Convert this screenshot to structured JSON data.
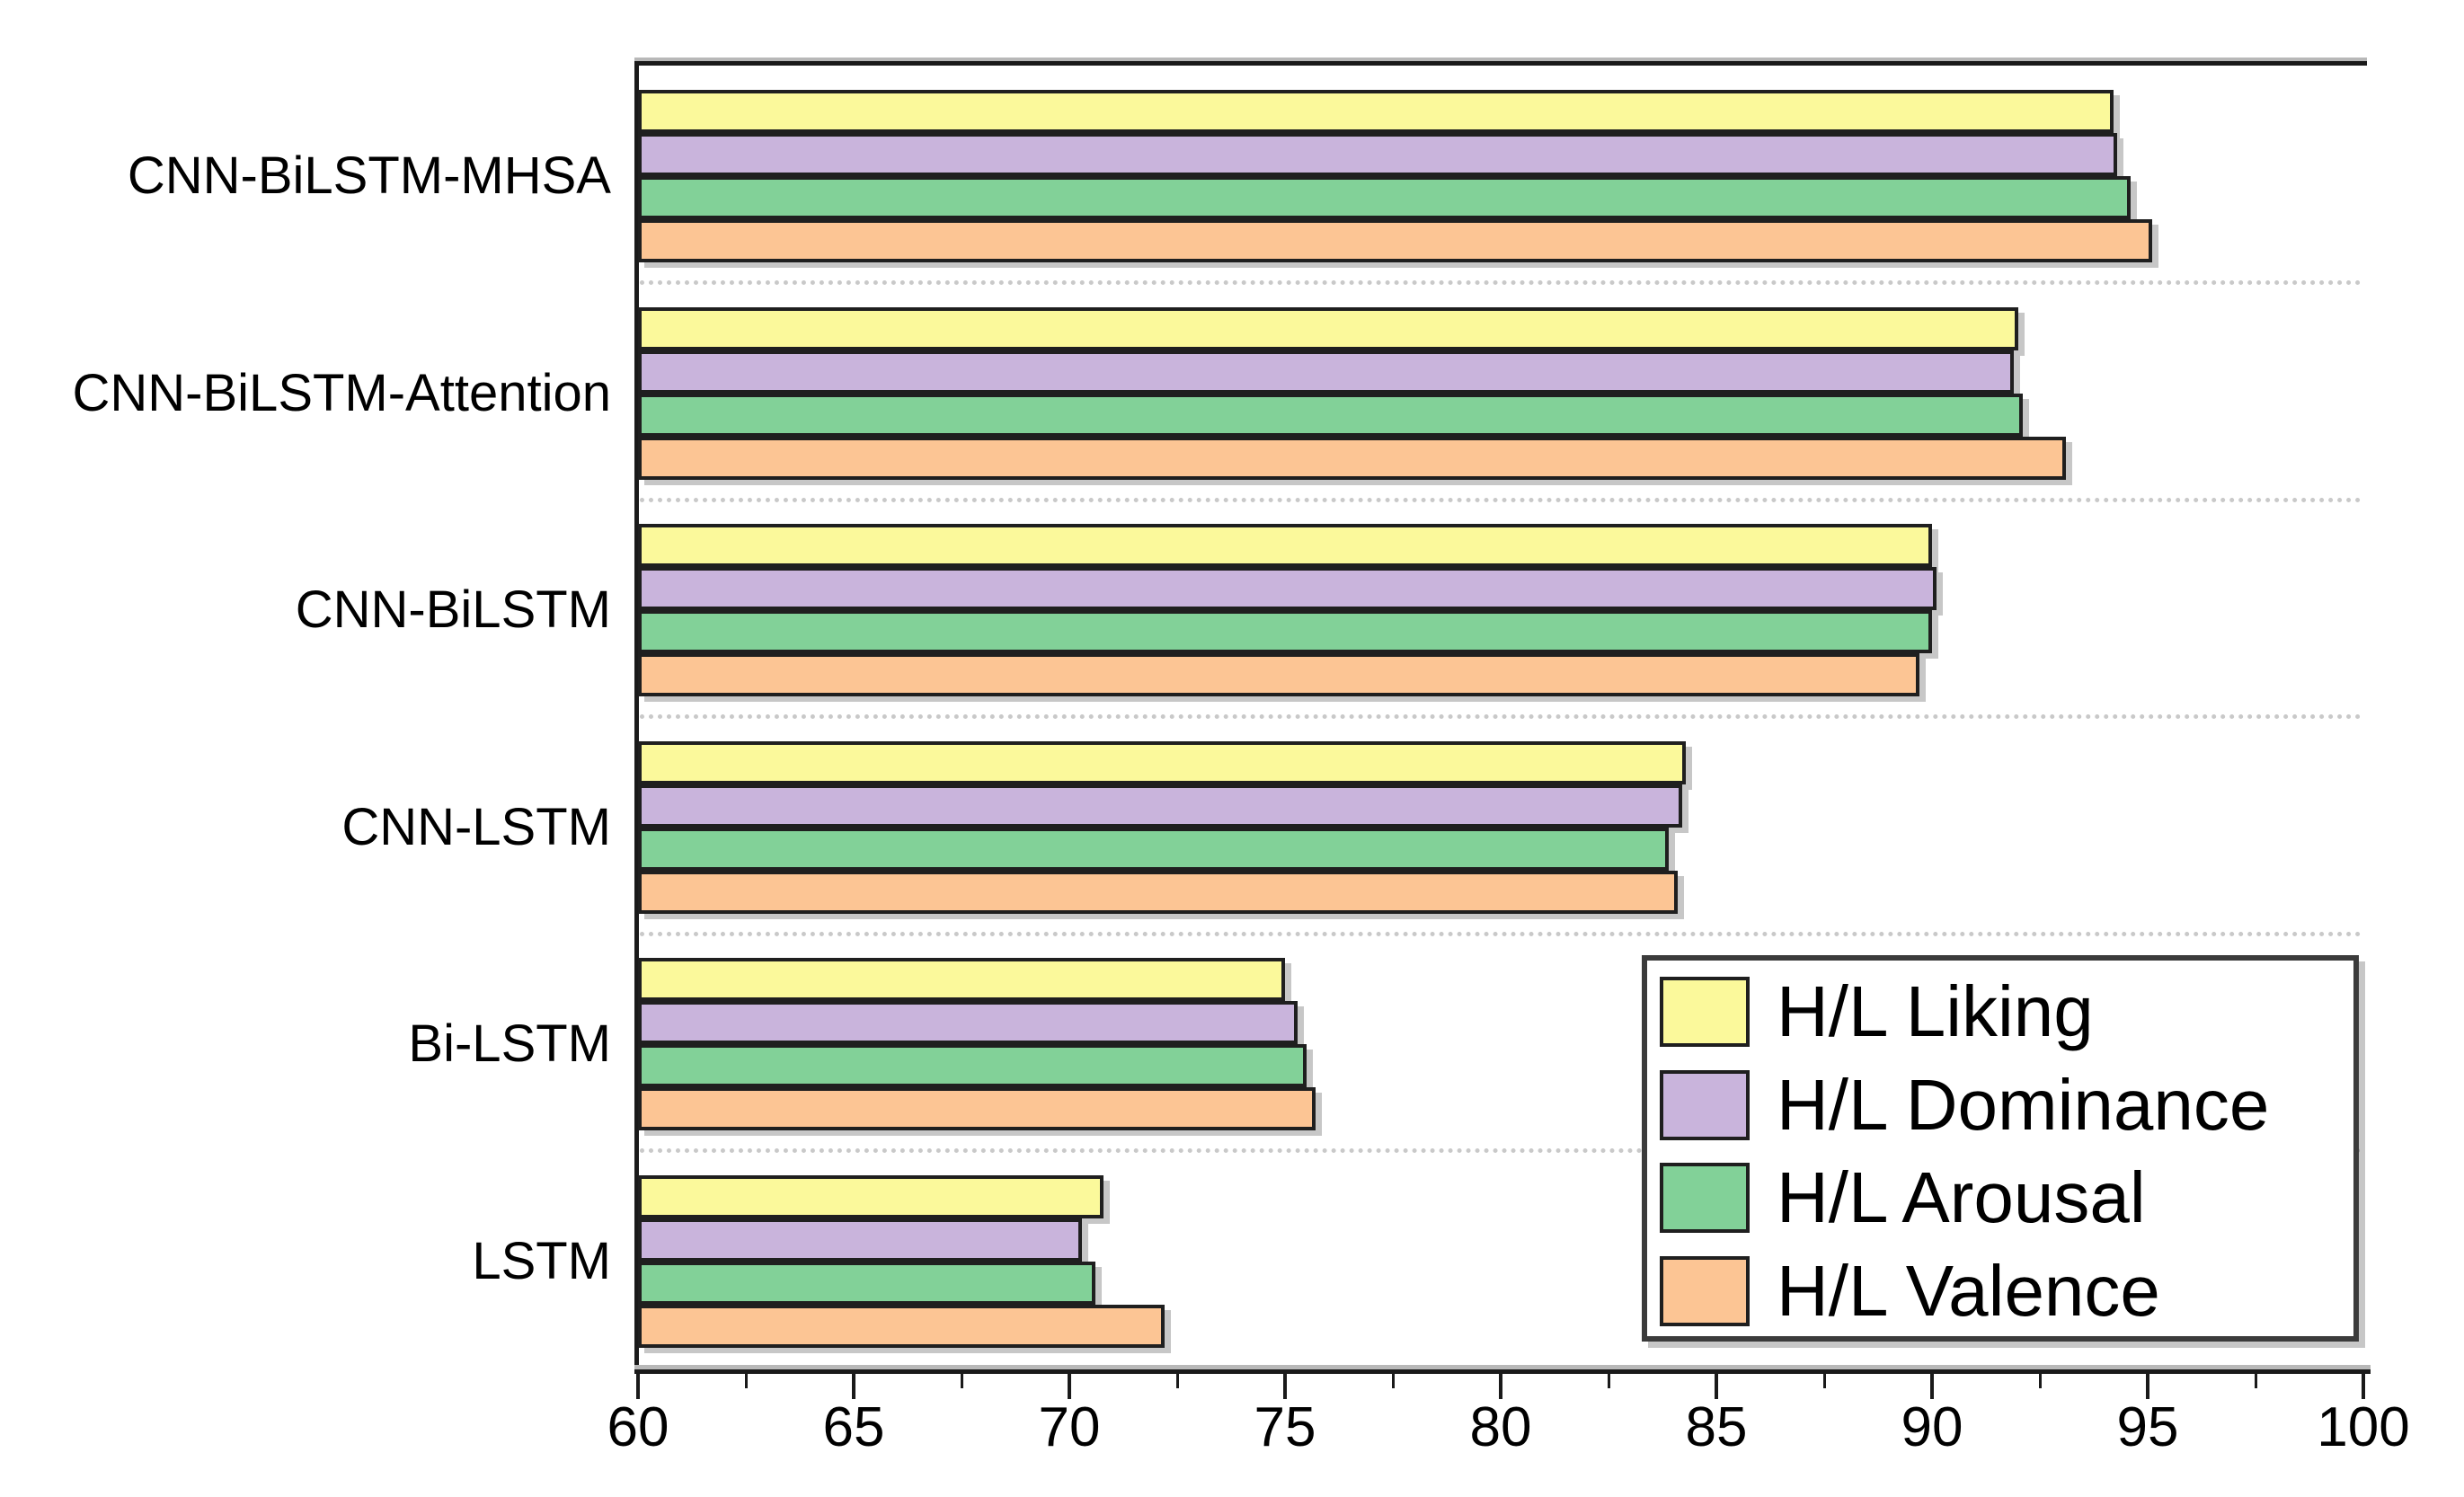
{
  "figure": {
    "title": "",
    "description_colors": {
      "bar_border": "#1f1f1f",
      "axis_line": "#1a1a1a",
      "separator_dotted": "#c9c9c9",
      "bar_shadow": "#828282",
      "legend_border": "#3b3b3b",
      "background": "#ffffff",
      "text": "#000000"
    }
  },
  "chart_data": {
    "type": "bar",
    "orientation": "horizontal",
    "title": "",
    "xlabel": "",
    "ylabel": "",
    "xlim": [
      60,
      100
    ],
    "x_major_ticks": [
      60,
      65,
      70,
      75,
      80,
      85,
      90,
      95,
      100
    ],
    "x_minor_ticks": [
      62.5,
      67.5,
      72.5,
      77.5,
      82.5,
      87.5,
      92.5,
      97.5
    ],
    "grid": "dotted horizontal separator between category groups",
    "legend_position": "bottom-right inside plot",
    "categories": [
      "CNN-BiLSTM-MHSA",
      "CNN-BiLSTM-Attention",
      "CNN-BiLSTM",
      "CNN-LSTM",
      "Bi-LSTM",
      "LSTM"
    ],
    "bar_order_in_group_top_to_bottom": [
      "H/L Liking",
      "H/L Dominance",
      "H/L Arousal",
      "H/L Valence"
    ],
    "series": [
      {
        "name": "H/L Liking",
        "color": "#FBF99B",
        "values": [
          94.2,
          92.0,
          90.0,
          84.3,
          75.0,
          70.8
        ]
      },
      {
        "name": "H/L Dominance",
        "color": "#C9B4DC",
        "values": [
          94.3,
          91.9,
          90.1,
          84.2,
          75.3,
          70.3
        ]
      },
      {
        "name": "H/L Arousal",
        "color": "#82D198",
        "values": [
          94.6,
          92.1,
          90.0,
          83.9,
          75.5,
          70.6
        ]
      },
      {
        "name": "H/L Valence",
        "color": "#FCC594",
        "values": [
          95.1,
          93.1,
          89.7,
          84.1,
          75.7,
          72.2
        ]
      }
    ]
  },
  "legend": {
    "items": [
      {
        "label": "H/L Liking",
        "color": "#FBF99B"
      },
      {
        "label": "H/L Dominance",
        "color": "#C9B4DC"
      },
      {
        "label": "H/L Arousal",
        "color": "#82D198"
      },
      {
        "label": "H/L Valence",
        "color": "#FCC594"
      }
    ]
  }
}
